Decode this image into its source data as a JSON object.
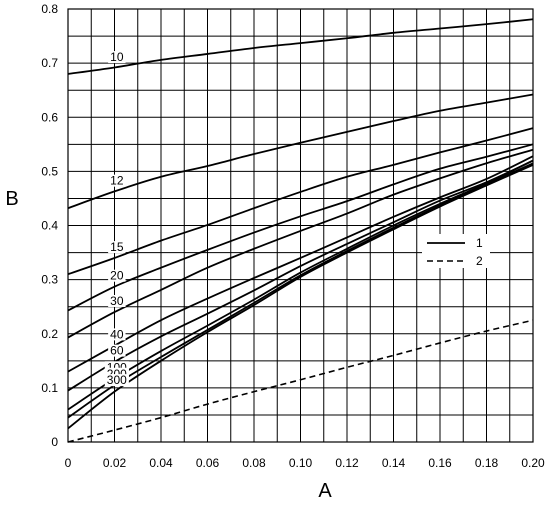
{
  "chart_data": {
    "type": "line",
    "xlabel": "A",
    "ylabel": "B",
    "xlim": [
      0,
      0.2
    ],
    "ylim": [
      0,
      0.8
    ],
    "x_ticks": [
      "0",
      "0.02",
      "0.04",
      "0.06",
      "0.08",
      "0.10",
      "0.12",
      "0.14",
      "0.16",
      "0.18",
      "0.20"
    ],
    "y_ticks": [
      "0",
      "0.1",
      "0.2",
      "0.3",
      "0.4",
      "0.5",
      "0.6",
      "0.7",
      "0.8"
    ],
    "grid": true,
    "x_grid_step": 0.01,
    "y_grid_step": 0.05,
    "legend": {
      "placement": "middle-right",
      "entries": [
        {
          "label": "1",
          "style": "solid"
        },
        {
          "label": "2",
          "style": "dashed"
        }
      ]
    },
    "series": [
      {
        "label": "10",
        "style": "solid",
        "points": [
          [
            0,
            0.68
          ],
          [
            0.02,
            0.692
          ],
          [
            0.04,
            0.706
          ],
          [
            0.06,
            0.717
          ],
          [
            0.08,
            0.728
          ],
          [
            0.1,
            0.737
          ],
          [
            0.12,
            0.746
          ],
          [
            0.14,
            0.756
          ],
          [
            0.16,
            0.764
          ],
          [
            0.18,
            0.772
          ],
          [
            0.2,
            0.781
          ]
        ]
      },
      {
        "label": "12",
        "style": "solid",
        "points": [
          [
            0,
            0.432
          ],
          [
            0.02,
            0.463
          ],
          [
            0.04,
            0.49
          ],
          [
            0.06,
            0.51
          ],
          [
            0.08,
            0.532
          ],
          [
            0.1,
            0.553
          ],
          [
            0.12,
            0.573
          ],
          [
            0.14,
            0.593
          ],
          [
            0.16,
            0.612
          ],
          [
            0.18,
            0.627
          ],
          [
            0.2,
            0.642
          ]
        ]
      },
      {
        "label": "15",
        "style": "solid",
        "points": [
          [
            0,
            0.31
          ],
          [
            0.02,
            0.34
          ],
          [
            0.04,
            0.372
          ],
          [
            0.06,
            0.401
          ],
          [
            0.08,
            0.432
          ],
          [
            0.1,
            0.462
          ],
          [
            0.12,
            0.49
          ],
          [
            0.14,
            0.512
          ],
          [
            0.16,
            0.535
          ],
          [
            0.18,
            0.557
          ],
          [
            0.2,
            0.58
          ]
        ]
      },
      {
        "label": "20",
        "style": "solid",
        "points": [
          [
            0,
            0.243
          ],
          [
            0.02,
            0.287
          ],
          [
            0.04,
            0.322
          ],
          [
            0.06,
            0.355
          ],
          [
            0.08,
            0.387
          ],
          [
            0.1,
            0.417
          ],
          [
            0.12,
            0.445
          ],
          [
            0.14,
            0.476
          ],
          [
            0.16,
            0.505
          ],
          [
            0.18,
            0.527
          ],
          [
            0.2,
            0.55
          ]
        ]
      },
      {
        "label": "30",
        "style": "solid",
        "points": [
          [
            0,
            0.193
          ],
          [
            0.02,
            0.24
          ],
          [
            0.04,
            0.281
          ],
          [
            0.06,
            0.322
          ],
          [
            0.08,
            0.357
          ],
          [
            0.1,
            0.39
          ],
          [
            0.12,
            0.422
          ],
          [
            0.14,
            0.457
          ],
          [
            0.16,
            0.487
          ],
          [
            0.18,
            0.515
          ],
          [
            0.2,
            0.54
          ]
        ]
      },
      {
        "label": "40",
        "style": "solid",
        "points": [
          [
            0,
            0.13
          ],
          [
            0.02,
            0.178
          ],
          [
            0.04,
            0.225
          ],
          [
            0.06,
            0.265
          ],
          [
            0.08,
            0.303
          ],
          [
            0.1,
            0.34
          ],
          [
            0.12,
            0.378
          ],
          [
            0.14,
            0.416
          ],
          [
            0.16,
            0.452
          ],
          [
            0.18,
            0.486
          ],
          [
            0.2,
            0.528
          ]
        ]
      },
      {
        "label": "60",
        "style": "solid",
        "points": [
          [
            0,
            0.095
          ],
          [
            0.02,
            0.148
          ],
          [
            0.04,
            0.195
          ],
          [
            0.06,
            0.237
          ],
          [
            0.08,
            0.28
          ],
          [
            0.1,
            0.325
          ],
          [
            0.12,
            0.366
          ],
          [
            0.14,
            0.406
          ],
          [
            0.16,
            0.446
          ],
          [
            0.18,
            0.48
          ],
          [
            0.2,
            0.52
          ]
        ]
      },
      {
        "label": "100",
        "style": "solid",
        "points": [
          [
            0,
            0.06
          ],
          [
            0.02,
            0.117
          ],
          [
            0.04,
            0.168
          ],
          [
            0.06,
            0.215
          ],
          [
            0.08,
            0.263
          ],
          [
            0.1,
            0.313
          ],
          [
            0.12,
            0.357
          ],
          [
            0.14,
            0.4
          ],
          [
            0.16,
            0.44
          ],
          [
            0.18,
            0.478
          ],
          [
            0.2,
            0.52
          ]
        ]
      },
      {
        "label": "200",
        "style": "solid",
        "points": [
          [
            0,
            0.045
          ],
          [
            0.02,
            0.105
          ],
          [
            0.04,
            0.157
          ],
          [
            0.06,
            0.207
          ],
          [
            0.08,
            0.257
          ],
          [
            0.1,
            0.308
          ],
          [
            0.12,
            0.353
          ],
          [
            0.14,
            0.396
          ],
          [
            0.16,
            0.437
          ],
          [
            0.18,
            0.476
          ],
          [
            0.2,
            0.515
          ]
        ]
      },
      {
        "label": "300",
        "style": "solid",
        "points": [
          [
            0,
            0.025
          ],
          [
            0.02,
            0.093
          ],
          [
            0.04,
            0.15
          ],
          [
            0.06,
            0.203
          ],
          [
            0.08,
            0.253
          ],
          [
            0.1,
            0.305
          ],
          [
            0.12,
            0.35
          ],
          [
            0.14,
            0.393
          ],
          [
            0.16,
            0.435
          ],
          [
            0.18,
            0.474
          ],
          [
            0.2,
            0.512
          ]
        ]
      },
      {
        "label": "",
        "legend_key": "2",
        "style": "dashed",
        "points": [
          [
            0,
            0.0
          ],
          [
            0.02,
            0.022
          ],
          [
            0.04,
            0.045
          ],
          [
            0.06,
            0.07
          ],
          [
            0.08,
            0.093
          ],
          [
            0.1,
            0.115
          ],
          [
            0.12,
            0.138
          ],
          [
            0.14,
            0.16
          ],
          [
            0.16,
            0.183
          ],
          [
            0.18,
            0.205
          ],
          [
            0.2,
            0.225
          ]
        ]
      }
    ]
  }
}
